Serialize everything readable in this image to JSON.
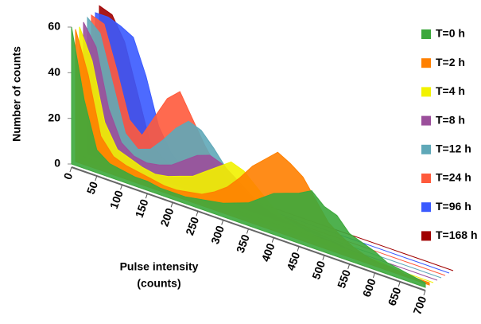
{
  "chart_data": {
    "type": "area3d",
    "ylabel": "Number of counts",
    "xlabel": [
      "Pulse intensity",
      "(counts)"
    ],
    "x": [
      0,
      25,
      50,
      75,
      100,
      125,
      150,
      175,
      200,
      225,
      250,
      275,
      300,
      325,
      350,
      375,
      400,
      425,
      450,
      475,
      500,
      525,
      550,
      575,
      600,
      625,
      650,
      675,
      700
    ],
    "xlim": [
      0,
      700
    ],
    "xticks": [
      0,
      50,
      100,
      150,
      200,
      250,
      300,
      350,
      400,
      450,
      500,
      550,
      600,
      650,
      700
    ],
    "ylim": [
      0,
      60
    ],
    "yticks": [
      0,
      20,
      40,
      60
    ],
    "series": [
      {
        "name": "T=0 h",
        "color": "#3ca83c",
        "values": [
          60,
          30,
          10,
          6,
          5,
          4,
          4,
          3,
          3,
          3,
          4,
          5,
          6,
          8,
          10,
          14,
          18,
          20,
          22,
          25,
          20,
          18,
          12,
          10,
          8,
          5,
          4,
          3,
          2
        ]
      },
      {
        "name": "T=2 h",
        "color": "#ff8000",
        "values": [
          58,
          40,
          15,
          8,
          6,
          5,
          4,
          3,
          3,
          4,
          5,
          8,
          12,
          18,
          25,
          30,
          35,
          32,
          28,
          20,
          12,
          8,
          5,
          3,
          2,
          2,
          1,
          1,
          1
        ]
      },
      {
        "name": "T=4 h",
        "color": "#f2f200",
        "values": [
          58,
          45,
          20,
          10,
          8,
          6,
          5,
          6,
          8,
          10,
          14,
          18,
          22,
          20,
          15,
          10,
          6,
          4,
          3,
          2,
          2,
          1,
          1,
          1,
          1,
          0,
          0,
          0,
          0
        ]
      },
      {
        "name": "T=8 h",
        "color": "#9b4f9b",
        "values": [
          59,
          50,
          25,
          12,
          8,
          7,
          8,
          10,
          14,
          18,
          20,
          18,
          14,
          10,
          6,
          4,
          3,
          2,
          1,
          1,
          1,
          0,
          0,
          0,
          0,
          0,
          0,
          0,
          0
        ]
      },
      {
        "name": "T=12 h",
        "color": "#5fa8b8",
        "values": [
          60,
          55,
          35,
          15,
          10,
          12,
          18,
          25,
          30,
          28,
          22,
          15,
          10,
          6,
          4,
          3,
          2,
          1,
          1,
          0,
          0,
          0,
          0,
          0,
          0,
          0,
          0,
          0,
          0
        ]
      },
      {
        "name": "T=24 h",
        "color": "#ff5a3c",
        "values": [
          60,
          58,
          40,
          20,
          15,
          25,
          35,
          40,
          30,
          20,
          12,
          8,
          5,
          3,
          2,
          1,
          1,
          0,
          0,
          0,
          0,
          0,
          0,
          0,
          0,
          0,
          0,
          0,
          0
        ]
      },
      {
        "name": "T=96 h",
        "color": "#3a5aff",
        "values": [
          60,
          60,
          58,
          55,
          40,
          20,
          10,
          5,
          3,
          2,
          1,
          1,
          0,
          0,
          0,
          0,
          0,
          0,
          0,
          0,
          0,
          0,
          0,
          0,
          0,
          0,
          0,
          0,
          0
        ]
      },
      {
        "name": "T=168 h",
        "color": "#a00000",
        "values": [
          62,
          60,
          50,
          30,
          10,
          5,
          2,
          1,
          0,
          0,
          0,
          0,
          0,
          0,
          0,
          0,
          0,
          0,
          0,
          0,
          0,
          0,
          0,
          0,
          0,
          0,
          0,
          0,
          0
        ]
      }
    ]
  }
}
